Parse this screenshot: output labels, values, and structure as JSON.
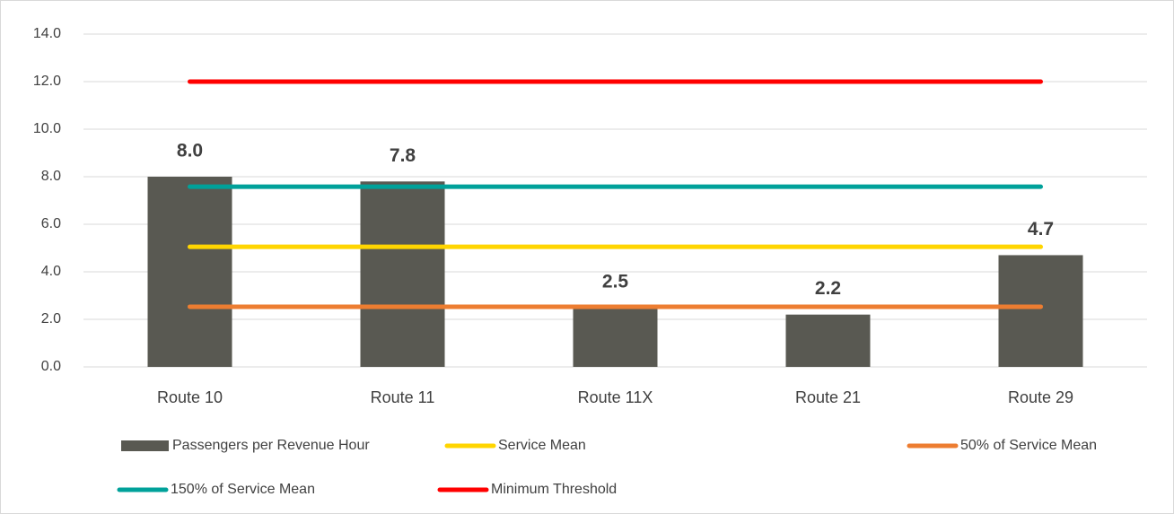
{
  "chart_data": {
    "type": "bar",
    "categories": [
      "Route 10",
      "Route 11",
      "Route 11X",
      "Route 21",
      "Route 29"
    ],
    "series": [
      {
        "name": "Passengers per Revenue Hour",
        "type": "bar",
        "color": "#595952",
        "values": [
          8.0,
          7.8,
          2.5,
          2.2,
          4.7
        ],
        "value_labels": [
          "8.0",
          "7.8",
          "2.5",
          "2.2",
          "4.7"
        ]
      },
      {
        "name": "Service Mean",
        "type": "line",
        "color": "#FFD500",
        "values": [
          5.05,
          5.05,
          5.05,
          5.05,
          5.05
        ]
      },
      {
        "name": "50% of Service Mean",
        "type": "line",
        "color": "#ED7D31",
        "values": [
          2.53,
          2.53,
          2.53,
          2.53,
          2.53
        ]
      },
      {
        "name": "150% of Service Mean",
        "type": "line",
        "color": "#00A19A",
        "values": [
          7.58,
          7.58,
          7.58,
          7.58,
          7.58
        ]
      },
      {
        "name": "Minimum Threshold",
        "type": "line",
        "color": "#FF0000",
        "values": [
          12,
          12,
          12,
          12,
          12
        ]
      }
    ],
    "ylim": [
      0,
      14
    ],
    "yticks": [
      {
        "value": 0,
        "label": "0.0"
      },
      {
        "value": 2,
        "label": "2.0"
      },
      {
        "value": 4,
        "label": "4.0"
      },
      {
        "value": 6,
        "label": "6.0"
      },
      {
        "value": 8,
        "label": "8.0"
      },
      {
        "value": 10,
        "label": "10.0"
      },
      {
        "value": 12,
        "label": "12.0"
      },
      {
        "value": 14,
        "label": "14.0"
      }
    ],
    "grid": true,
    "legend": "bottom"
  }
}
